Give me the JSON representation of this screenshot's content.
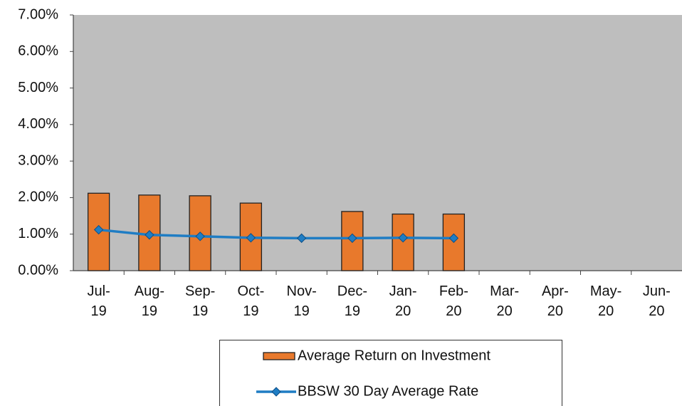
{
  "chart_data": {
    "type": "bar",
    "categories": [
      "Jul-19",
      "Aug-19",
      "Sep-19",
      "Oct-19",
      "Nov-19",
      "Dec-19",
      "Jan-20",
      "Feb-20",
      "Mar-20",
      "Apr-20",
      "May-20",
      "Jun-20"
    ],
    "series": [
      {
        "name": "Average Return on Investment",
        "type": "bar",
        "color": "#e8792c",
        "values": [
          2.12,
          2.07,
          2.05,
          1.85,
          null,
          1.62,
          1.55,
          1.55,
          null,
          null,
          null,
          null
        ]
      },
      {
        "name": "BBSW 30 Day Average Rate",
        "type": "line",
        "color": "#1f7dc4",
        "values": [
          1.12,
          0.98,
          0.94,
          0.9,
          0.89,
          0.89,
          0.9,
          0.89,
          null,
          null,
          null,
          null
        ]
      }
    ],
    "ylim": [
      0,
      7
    ],
    "yticks": [
      {
        "value": 0,
        "label": "0.00%"
      },
      {
        "value": 1,
        "label": "1.00%"
      },
      {
        "value": 2,
        "label": "2.00%"
      },
      {
        "value": 3,
        "label": "3.00%"
      },
      {
        "value": 4,
        "label": "4.00%"
      },
      {
        "value": 5,
        "label": "5.00%"
      },
      {
        "value": 6,
        "label": "6.00%"
      },
      {
        "value": 7,
        "label": "7.00%"
      }
    ],
    "legend": "bottom"
  }
}
